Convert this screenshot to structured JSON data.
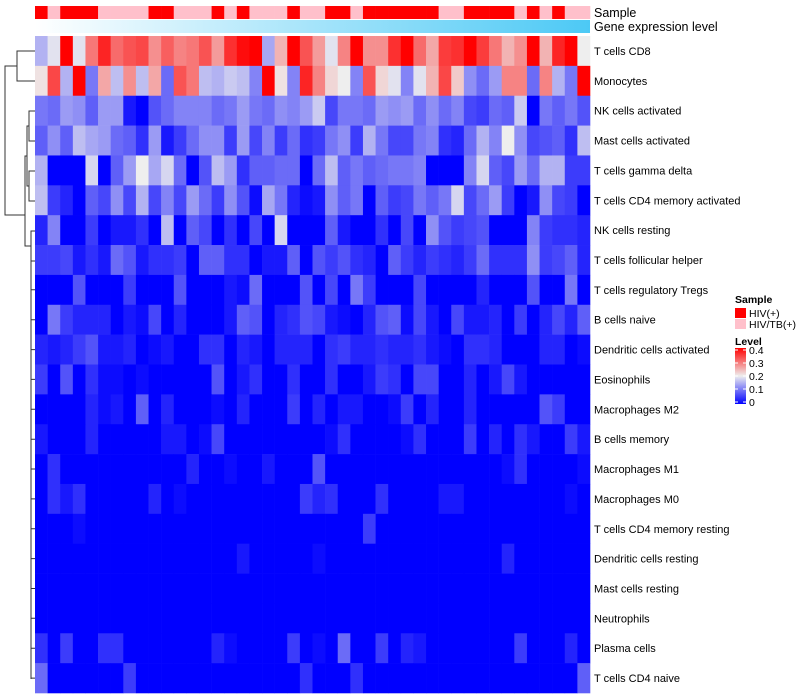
{
  "chart_data": {
    "type": "heatmap",
    "title": "",
    "annotation_labels": {
      "sample": "Sample",
      "gene_expression": "Gene expression level"
    },
    "rows": [
      "T cells CD8",
      "Monocytes",
      "NK cells activated",
      "Mast cells activated",
      "T cells gamma delta",
      "T cells CD4 memory activated",
      "NK cells resting",
      "T cells follicular helper",
      "T cells regulatory  Tregs",
      "B cells naive",
      "Dendritic cells activated",
      "Eosinophils",
      "Macrophages M2",
      "B cells memory",
      "Macrophages M1",
      "Macrophages M0",
      "T cells CD4 memory resting",
      "Dendritic cells resting",
      "Mast cells resting",
      "Neutrophils",
      "Plasma cells",
      "T cells CD4 naive"
    ],
    "sample_groups": [
      "HIV(+)",
      "HIV/TB(+)",
      "HIV(+)",
      "HIV(+)",
      "HIV(+)",
      "HIV/TB(+)",
      "HIV/TB(+)",
      "HIV/TB(+)",
      "HIV/TB(+)",
      "HIV(+)",
      "HIV(+)",
      "HIV/TB(+)",
      "HIV/TB(+)",
      "HIV/TB(+)",
      "HIV(+)",
      "HIV/TB(+)",
      "HIV(+)",
      "HIV/TB(+)",
      "HIV/TB(+)",
      "HIV/TB(+)",
      "HIV(+)",
      "HIV/TB(+)",
      "HIV/TB(+)",
      "HIV(+)",
      "HIV(+)",
      "HIV/TB(+)",
      "HIV(+)",
      "HIV(+)",
      "HIV(+)",
      "HIV(+)",
      "HIV(+)",
      "HIV(+)",
      "HIV/TB(+)",
      "HIV/TB(+)",
      "HIV(+)",
      "HIV(+)",
      "HIV(+)",
      "HIV(+)",
      "HIV/TB(+)",
      "HIV(+)",
      "HIV/TB(+)",
      "HIV(+)",
      "HIV/TB(+)",
      "HIV/TB(+)"
    ],
    "gene_expression_gradient": {
      "low": "#ffffff",
      "high": "#4cc9f5"
    },
    "values": [
      [
        0.15,
        0.19,
        0.4,
        0.19,
        0.3,
        0.37,
        0.31,
        0.33,
        0.34,
        0.28,
        0.32,
        0.29,
        0.3,
        0.33,
        0.27,
        0.36,
        0.39,
        0.4,
        0.14,
        0.25,
        0.4,
        0.33,
        0.27,
        0.19,
        0.29,
        0.4,
        0.28,
        0.28,
        0.36,
        0.4,
        0.31,
        0.26,
        0.35,
        0.36,
        0.4,
        0.35,
        0.3,
        0.25,
        0.28,
        0.4,
        0.25,
        0.37,
        0.4,
        0.2
      ],
      [
        0.21,
        0.34,
        0.15,
        0.4,
        0.1,
        0.26,
        0.16,
        0.28,
        0.16,
        0.26,
        0.09,
        0.33,
        0.3,
        0.16,
        0.15,
        0.17,
        0.16,
        0.11,
        0.4,
        0.21,
        0.11,
        0.37,
        0.29,
        0.22,
        0.2,
        0.11,
        0.33,
        0.22,
        0.19,
        0.11,
        0.19,
        0.25,
        0.34,
        0.23,
        0.12,
        0.09,
        0.13,
        0.29,
        0.29,
        0.09,
        0.29,
        0.15,
        0.1,
        0.4
      ],
      [
        0.1,
        0.09,
        0.13,
        0.12,
        0.08,
        0.13,
        0.13,
        0.02,
        0,
        0.07,
        0.09,
        0.11,
        0.11,
        0.11,
        0.09,
        0.1,
        0.13,
        0.1,
        0.09,
        0.12,
        0.11,
        0.13,
        0.17,
        0.06,
        0.1,
        0.1,
        0.09,
        0.13,
        0.12,
        0.13,
        0.09,
        0.12,
        0.09,
        0.11,
        0.06,
        0.05,
        0.09,
        0.08,
        0.17,
        0,
        0.1,
        0.08,
        0.1,
        0.07
      ],
      [
        0.08,
        0.12,
        0.08,
        0.16,
        0.14,
        0.13,
        0.09,
        0.08,
        0.04,
        0.13,
        0.02,
        0.05,
        0.09,
        0.12,
        0.12,
        0.05,
        0.13,
        0.06,
        0.11,
        0.05,
        0.09,
        0.04,
        0.05,
        0.1,
        0.12,
        0.05,
        0.15,
        0.1,
        0.06,
        0.06,
        0.1,
        0.11,
        0.04,
        0.03,
        0.09,
        0.15,
        0.11,
        0.2,
        0.12,
        0.06,
        0.07,
        0.08,
        0.04,
        0.16
      ],
      [
        0.15,
        0,
        0,
        0,
        0.18,
        0,
        0.08,
        0.13,
        0.2,
        0.14,
        0.18,
        0.09,
        0,
        0.07,
        0.16,
        0.13,
        0.04,
        0.08,
        0.08,
        0.09,
        0.09,
        0,
        0.09,
        0.16,
        0.08,
        0.1,
        0.08,
        0.09,
        0.1,
        0.1,
        0.11,
        0,
        0,
        0,
        0.11,
        0.18,
        0.08,
        0.06,
        0.13,
        0.09,
        0.15,
        0.15,
        0.05,
        0.05
      ],
      [
        0.16,
        0.05,
        0.03,
        0,
        0.08,
        0.06,
        0.12,
        0.06,
        0.15,
        0.06,
        0.11,
        0.06,
        0.13,
        0.09,
        0.05,
        0.12,
        0.07,
        0.01,
        0.14,
        0.1,
        0.03,
        0.01,
        0.02,
        0.12,
        0.08,
        0.1,
        0,
        0.08,
        0.05,
        0.06,
        0.1,
        0.08,
        0.1,
        0.18,
        0.06,
        0.09,
        0.13,
        0.05,
        0,
        0.02,
        0.12,
        0.06,
        0.05,
        0
      ],
      [
        0.03,
        0.11,
        0,
        0,
        0.05,
        0,
        0.02,
        0.02,
        0.04,
        0,
        0.16,
        0,
        0.08,
        0.06,
        0,
        0.04,
        0,
        0.06,
        0,
        0.18,
        0,
        0,
        0,
        0.08,
        0.02,
        0,
        0,
        0.04,
        0,
        0.06,
        0,
        0.12,
        0.07,
        0.05,
        0.06,
        0.07,
        0,
        0,
        0,
        0.11,
        0.05,
        0.04,
        0.04,
        0.03
      ],
      [
        0.05,
        0.05,
        0.06,
        0.02,
        0.04,
        0.02,
        0.09,
        0.07,
        0.02,
        0.04,
        0.04,
        0.05,
        0,
        0.08,
        0.08,
        0.04,
        0.04,
        0,
        0.02,
        0.02,
        0.08,
        0,
        0.07,
        0.05,
        0.07,
        0.04,
        0.03,
        0,
        0.08,
        0.05,
        0.03,
        0.05,
        0.04,
        0.03,
        0.05,
        0.09,
        0.04,
        0.04,
        0.04,
        0.12,
        0.05,
        0.06,
        0.08,
        0.03
      ],
      [
        0,
        0,
        0,
        0.07,
        0,
        0,
        0,
        0.05,
        0,
        0,
        0,
        0.07,
        0,
        0,
        0,
        0.02,
        0.01,
        0.09,
        0,
        0,
        0,
        0.07,
        0,
        0.06,
        0,
        0.1,
        0.05,
        0,
        0,
        0,
        0.06,
        0,
        0,
        0,
        0,
        0.03,
        0,
        0,
        0,
        0.07,
        0,
        0,
        0.1,
        0
      ],
      [
        0,
        0.1,
        0.05,
        0.03,
        0.03,
        0.03,
        0,
        0.02,
        0.01,
        0.06,
        0,
        0.03,
        0,
        0,
        0,
        0.02,
        0.08,
        0.07,
        0,
        0.03,
        0.04,
        0.07,
        0.06,
        0.02,
        0.01,
        0,
        0.03,
        0.07,
        0.08,
        0.01,
        0.06,
        0.02,
        0,
        0.06,
        0.02,
        0.02,
        0.03,
        0,
        0.05,
        0,
        0.03,
        0.06,
        0.03,
        0.08
      ],
      [
        0.03,
        0.02,
        0.03,
        0.05,
        0.07,
        0.02,
        0.02,
        0.03,
        0,
        0.01,
        0.02,
        0,
        0,
        0.04,
        0.04,
        0,
        0.03,
        0.02,
        0,
        0.03,
        0.03,
        0.03,
        0,
        0.04,
        0.05,
        0.03,
        0.03,
        0.04,
        0.03,
        0.03,
        0.04,
        0.02,
        0.01,
        0,
        0.04,
        0.04,
        0.03,
        0,
        0,
        0,
        0.03,
        0.03,
        0,
        0.01
      ],
      [
        0.05,
        0,
        0.07,
        0,
        0.04,
        0.01,
        0.01,
        0,
        0.01,
        0,
        0,
        0,
        0,
        0,
        0.07,
        0,
        0.02,
        0.04,
        0,
        0,
        0.04,
        0,
        0,
        0.04,
        0,
        0,
        0.02,
        0.05,
        0.04,
        0,
        0.06,
        0.06,
        0,
        0,
        0.03,
        0,
        0.02,
        0.06,
        0.02,
        0,
        0,
        0,
        0,
        0
      ],
      [
        0,
        0,
        0,
        0,
        0.03,
        0.01,
        0.02,
        0,
        0.08,
        0,
        0.03,
        0,
        0,
        0,
        0.01,
        0,
        0.03,
        0,
        0,
        0,
        0.05,
        0,
        0.03,
        0,
        0.02,
        0.02,
        0,
        0,
        0.01,
        0.05,
        0,
        0.03,
        0,
        0,
        0.03,
        0,
        0,
        0,
        0,
        0,
        0.07,
        0.05,
        0,
        0
      ],
      [
        0.02,
        0,
        0,
        0,
        0.03,
        0,
        0,
        0,
        0,
        0,
        0.02,
        0.02,
        0,
        0.01,
        0.06,
        0,
        0,
        0,
        0,
        0,
        0,
        0,
        0,
        0.01,
        0.04,
        0,
        0,
        0,
        0,
        0.01,
        0.04,
        0,
        0,
        0,
        0.05,
        0,
        0.03,
        0,
        0.04,
        0.02,
        0,
        0,
        0.05,
        0.02
      ],
      [
        0,
        0.04,
        0,
        0,
        0,
        0,
        0,
        0,
        0,
        0,
        0,
        0,
        0.03,
        0,
        0,
        0.01,
        0,
        0,
        0.02,
        0,
        0,
        0,
        0.07,
        0,
        0,
        0,
        0,
        0,
        0,
        0,
        0,
        0,
        0,
        0,
        0,
        0,
        0,
        0.01,
        0.04,
        0,
        0,
        0,
        0,
        0.01
      ],
      [
        0,
        0.04,
        0.02,
        0.04,
        0,
        0,
        0,
        0,
        0,
        0.03,
        0,
        0.01,
        0,
        0,
        0,
        0,
        0,
        0,
        0,
        0,
        0,
        0.05,
        0.03,
        0.04,
        0,
        0,
        0,
        0.04,
        0,
        0,
        0,
        0,
        0.02,
        0.02,
        0,
        0,
        0,
        0,
        0,
        0,
        0,
        0,
        0.01,
        0
      ],
      [
        0,
        0,
        0,
        0.01,
        0,
        0,
        0,
        0,
        0,
        0,
        0,
        0,
        0,
        0,
        0,
        0,
        0,
        0,
        0,
        0,
        0,
        0,
        0,
        0,
        0,
        0,
        0.05,
        0,
        0,
        0,
        0,
        0,
        0,
        0,
        0,
        0,
        0,
        0,
        0,
        0,
        0,
        0,
        0,
        0
      ],
      [
        0,
        0,
        0,
        0,
        0,
        0,
        0,
        0,
        0,
        0,
        0,
        0,
        0,
        0,
        0,
        0,
        0.02,
        0,
        0,
        0,
        0,
        0,
        0.01,
        0,
        0,
        0,
        0,
        0,
        0,
        0,
        0,
        0,
        0,
        0,
        0,
        0,
        0,
        0.03,
        0,
        0,
        0,
        0,
        0,
        0
      ],
      [
        0,
        0,
        0,
        0,
        0,
        0,
        0,
        0,
        0,
        0,
        0,
        0,
        0,
        0,
        0,
        0,
        0,
        0,
        0,
        0,
        0,
        0,
        0,
        0,
        0,
        0,
        0,
        0,
        0,
        0,
        0,
        0,
        0,
        0,
        0,
        0,
        0,
        0,
        0,
        0,
        0,
        0,
        0,
        0
      ],
      [
        0,
        0,
        0,
        0,
        0,
        0,
        0,
        0,
        0,
        0,
        0,
        0,
        0,
        0,
        0,
        0,
        0,
        0,
        0,
        0,
        0,
        0,
        0,
        0,
        0,
        0,
        0,
        0,
        0,
        0,
        0,
        0,
        0,
        0,
        0,
        0,
        0,
        0,
        0,
        0,
        0,
        0,
        0,
        0
      ],
      [
        0.04,
        0,
        0.05,
        0,
        0,
        0.04,
        0.04,
        0,
        0,
        0,
        0,
        0,
        0,
        0,
        0.03,
        0.01,
        0,
        0,
        0,
        0,
        0.05,
        0,
        0.01,
        0,
        0.09,
        0,
        0,
        0.05,
        0,
        0.03,
        0.02,
        0,
        0,
        0,
        0,
        0,
        0,
        0,
        0.05,
        0,
        0,
        0,
        0.03,
        0
      ],
      [
        0.09,
        0,
        0,
        0,
        0,
        0,
        0,
        0.05,
        0,
        0,
        0,
        0,
        0,
        0,
        0,
        0,
        0,
        0,
        0,
        0,
        0,
        0.04,
        0,
        0,
        0,
        0.04,
        0,
        0,
        0,
        0,
        0,
        0,
        0,
        0,
        0,
        0,
        0,
        0,
        0,
        0,
        0,
        0,
        0,
        0.08
      ]
    ],
    "color_scale": {
      "low": "#0000ff",
      "mid": "#eeeeee",
      "high": "#ff0000",
      "domain": [
        0,
        0.4
      ]
    },
    "legend": {
      "sample_title": "Sample",
      "sample_entries": [
        {
          "label": "HIV(+)",
          "color": "#ff0000"
        },
        {
          "label": "HIV/TB(+)",
          "color": "#ffc0cb"
        }
      ],
      "level_title": "Level",
      "level_ticks": [
        "0.4",
        "0.3",
        "0.2",
        "0.1",
        "0"
      ],
      "placement": "right"
    }
  }
}
